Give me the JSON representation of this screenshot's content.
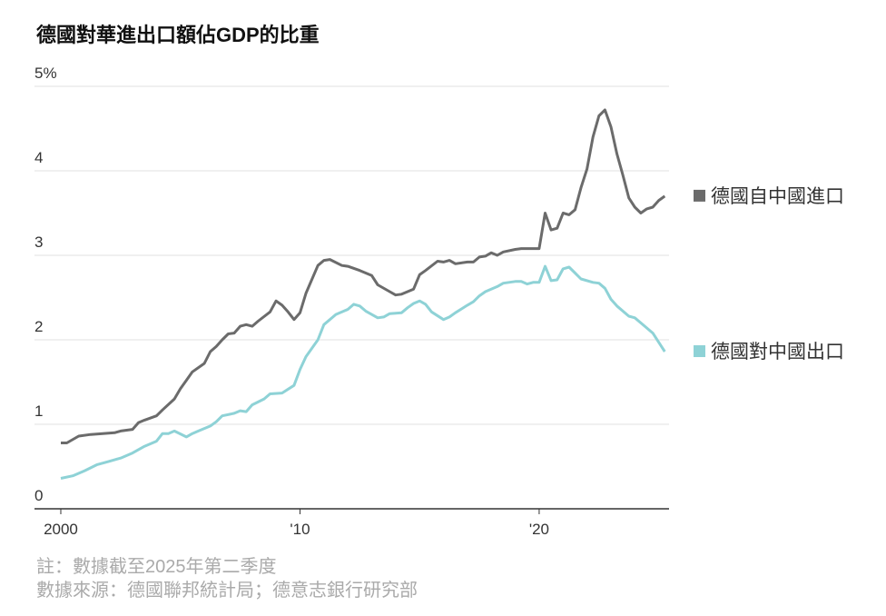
{
  "chart_data": {
    "type": "line",
    "title": "德國對華進出口額佔GDP的比重",
    "notes": [
      "註：數據截至2025年第二季度",
      "數據來源：德國聯邦統計局；德意志銀行研究部"
    ],
    "xlim": [
      1998.9,
      2025.43
    ],
    "xticks": [
      2000,
      {
        "value": 2010,
        "label": "'10"
      },
      {
        "value": 2020,
        "label": "'20"
      }
    ],
    "ylim": [
      0,
      5
    ],
    "yticks": [
      0,
      1,
      2,
      3,
      4,
      {
        "value": 5,
        "label": "5%"
      }
    ],
    "grid": true,
    "legend": "right",
    "series": [
      {
        "name": "德國自中國進口",
        "color": "#6b6b6b",
        "x": [
          2000,
          2000.25,
          2000.75,
          2001.25,
          2001.75,
          2002.25,
          2002.5,
          2003,
          2003.25,
          2003.5,
          2004,
          2004.25,
          2004.75,
          2005,
          2005.25,
          2005.5,
          2006,
          2006.25,
          2006.5,
          2006.75,
          2007,
          2007.25,
          2007.5,
          2007.75,
          2008,
          2008.25,
          2008.75,
          2009,
          2009.25,
          2009.5,
          2009.75,
          2010,
          2010.25,
          2010.75,
          2011,
          2011.25,
          2011.75,
          2012,
          2012.5,
          2013,
          2013.25,
          2013.75,
          2014,
          2014.25,
          2014.75,
          2015,
          2015.25,
          2015.75,
          2016,
          2016.25,
          2016.5,
          2017,
          2017.25,
          2017.5,
          2017.75,
          2018,
          2018.25,
          2018.5,
          2019,
          2019.25,
          2020,
          2020.25,
          2020.5,
          2020.75,
          2021,
          2021.25,
          2021.5,
          2021.75,
          2022,
          2022.25,
          2022.5,
          2022.75,
          2023,
          2023.25,
          2023.5,
          2023.75,
          2024,
          2024.25,
          2024.5,
          2024.75,
          2025,
          2025.25
        ],
        "values": [
          0.78,
          0.78,
          0.86,
          0.88,
          0.89,
          0.9,
          0.92,
          0.94,
          1.02,
          1.05,
          1.1,
          1.17,
          1.3,
          1.42,
          1.52,
          1.62,
          1.72,
          1.86,
          1.92,
          2.0,
          2.07,
          2.08,
          2.16,
          2.18,
          2.16,
          2.22,
          2.33,
          2.46,
          2.41,
          2.33,
          2.24,
          2.32,
          2.55,
          2.88,
          2.94,
          2.95,
          2.88,
          2.87,
          2.82,
          2.76,
          2.65,
          2.57,
          2.53,
          2.54,
          2.6,
          2.77,
          2.82,
          2.93,
          2.92,
          2.94,
          2.9,
          2.92,
          2.92,
          2.98,
          2.99,
          3.03,
          3.0,
          3.04,
          3.07,
          3.08,
          3.08,
          3.5,
          3.3,
          3.32,
          3.5,
          3.48,
          3.54,
          3.8,
          4.02,
          4.4,
          4.65,
          4.72,
          4.52,
          4.2,
          3.95,
          3.68,
          3.57,
          3.5,
          3.55,
          3.57,
          3.65,
          3.7
        ]
      },
      {
        "name": "德國對中國出口",
        "color": "#8ed2d6",
        "x": [
          2000,
          2000.5,
          2001,
          2001.5,
          2002,
          2002.5,
          2003,
          2003.5,
          2004,
          2004.25,
          2004.5,
          2004.75,
          2005.25,
          2005.5,
          2005.75,
          2006.25,
          2006.5,
          2006.75,
          2007.25,
          2007.5,
          2007.75,
          2008,
          2008.5,
          2008.75,
          2009.25,
          2009.75,
          2010,
          2010.25,
          2010.75,
          2011,
          2011.5,
          2012,
          2012.25,
          2012.5,
          2012.75,
          2013.25,
          2013.5,
          2013.75,
          2014.25,
          2014.5,
          2014.75,
          2015,
          2015.25,
          2015.5,
          2016,
          2016.25,
          2016.5,
          2017,
          2017.25,
          2017.5,
          2017.75,
          2018.25,
          2018.5,
          2019,
          2019.25,
          2019.5,
          2019.75,
          2020,
          2020.25,
          2020.5,
          2020.75,
          2021,
          2021.25,
          2021.5,
          2021.75,
          2022.25,
          2022.5,
          2022.75,
          2023,
          2023.25,
          2023.75,
          2024,
          2024.25,
          2024.75,
          2025,
          2025.25
        ],
        "values": [
          0.36,
          0.39,
          0.45,
          0.52,
          0.56,
          0.6,
          0.66,
          0.74,
          0.8,
          0.89,
          0.89,
          0.92,
          0.85,
          0.89,
          0.92,
          0.98,
          1.03,
          1.1,
          1.13,
          1.16,
          1.15,
          1.23,
          1.3,
          1.36,
          1.37,
          1.46,
          1.65,
          1.8,
          2.0,
          2.18,
          2.3,
          2.36,
          2.42,
          2.4,
          2.34,
          2.26,
          2.27,
          2.31,
          2.32,
          2.38,
          2.43,
          2.46,
          2.42,
          2.33,
          2.24,
          2.27,
          2.32,
          2.41,
          2.45,
          2.52,
          2.57,
          2.63,
          2.67,
          2.69,
          2.69,
          2.66,
          2.68,
          2.68,
          2.87,
          2.7,
          2.71,
          2.84,
          2.86,
          2.79,
          2.72,
          2.68,
          2.67,
          2.61,
          2.48,
          2.4,
          2.28,
          2.26,
          2.2,
          2.08,
          1.97,
          1.86
        ]
      }
    ]
  }
}
